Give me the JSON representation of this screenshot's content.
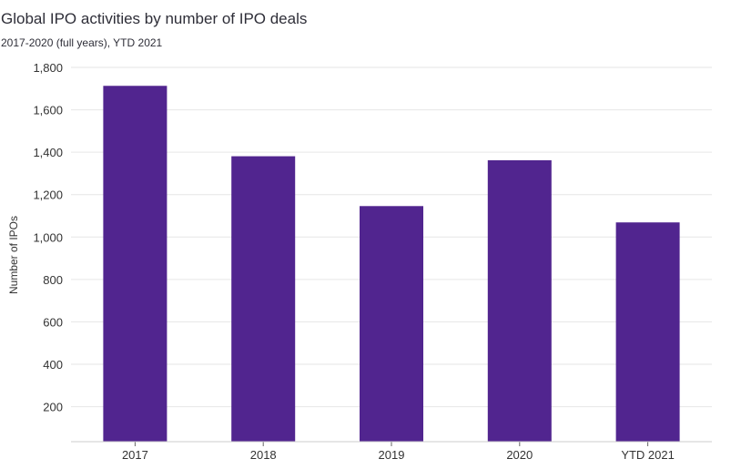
{
  "chart_data": {
    "type": "bar",
    "title": "Global IPO activities by number of IPO deals",
    "subtitle": "2017-2020 (full years), YTD 2021",
    "xlabel": "",
    "ylabel": "Number of IPOs",
    "categories": [
      "2017",
      "2018",
      "2019",
      "2020",
      "YTD 2021"
    ],
    "values": [
      1713,
      1381,
      1146,
      1362,
      1069
    ],
    "ylim": [
      35,
      1800
    ],
    "yticks": [
      200,
      400,
      600,
      800,
      1000,
      1200,
      1400,
      1600,
      1800
    ],
    "ytick_labels": [
      "200",
      "400",
      "600",
      "800",
      "1,000",
      "1,200",
      "1,400",
      "1,600",
      "1,800"
    ],
    "bar_color": "#51258f",
    "grid": true,
    "legend": "none"
  }
}
